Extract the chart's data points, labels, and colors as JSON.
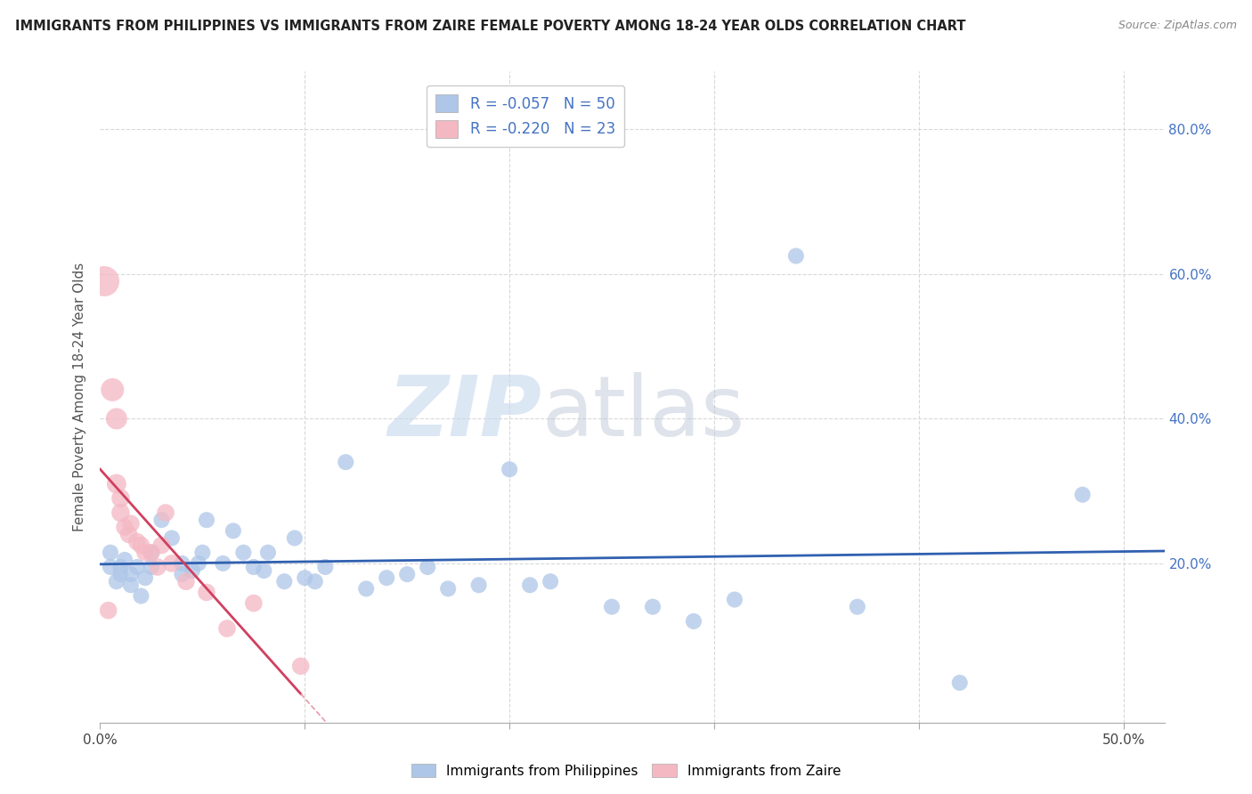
{
  "title": "IMMIGRANTS FROM PHILIPPINES VS IMMIGRANTS FROM ZAIRE FEMALE POVERTY AMONG 18-24 YEAR OLDS CORRELATION CHART",
  "source": "Source: ZipAtlas.com",
  "ylabel": "Female Poverty Among 18-24 Year Olds",
  "xlim": [
    0.0,
    0.52
  ],
  "ylim": [
    -0.02,
    0.88
  ],
  "philippines_color": "#aec6e8",
  "zaire_color": "#f4b8c3",
  "philippines_line_color": "#3060b0",
  "zaire_line_color": "#d04060",
  "zaire_line_dashed_color": "#e899aa",
  "R_philippines": -0.057,
  "N_philippines": 50,
  "R_zaire": -0.22,
  "N_zaire": 23,
  "watermark_zip": "ZIP",
  "watermark_atlas": "atlas",
  "background_color": "#ffffff",
  "grid_color": "#d8d8d8",
  "philippines_x": [
    0.005,
    0.005,
    0.008,
    0.01,
    0.01,
    0.012,
    0.015,
    0.015,
    0.018,
    0.02,
    0.022,
    0.025,
    0.025,
    0.03,
    0.035,
    0.04,
    0.04,
    0.045,
    0.048,
    0.05,
    0.052,
    0.06,
    0.065,
    0.07,
    0.075,
    0.08,
    0.082,
    0.09,
    0.095,
    0.1,
    0.105,
    0.11,
    0.12,
    0.13,
    0.14,
    0.15,
    0.16,
    0.17,
    0.185,
    0.2,
    0.21,
    0.22,
    0.25,
    0.27,
    0.29,
    0.31,
    0.34,
    0.37,
    0.42,
    0.48
  ],
  "philippines_y": [
    0.195,
    0.215,
    0.175,
    0.185,
    0.195,
    0.205,
    0.17,
    0.185,
    0.195,
    0.155,
    0.18,
    0.195,
    0.215,
    0.26,
    0.235,
    0.185,
    0.2,
    0.19,
    0.2,
    0.215,
    0.26,
    0.2,
    0.245,
    0.215,
    0.195,
    0.19,
    0.215,
    0.175,
    0.235,
    0.18,
    0.175,
    0.195,
    0.34,
    0.165,
    0.18,
    0.185,
    0.195,
    0.165,
    0.17,
    0.33,
    0.17,
    0.175,
    0.14,
    0.14,
    0.12,
    0.15,
    0.625,
    0.14,
    0.035,
    0.295
  ],
  "zaire_x": [
    0.002,
    0.004,
    0.006,
    0.008,
    0.008,
    0.01,
    0.01,
    0.012,
    0.014,
    0.015,
    0.018,
    0.02,
    0.022,
    0.025,
    0.028,
    0.03,
    0.032,
    0.035,
    0.042,
    0.052,
    0.062,
    0.075,
    0.098
  ],
  "zaire_y": [
    0.59,
    0.135,
    0.44,
    0.4,
    0.31,
    0.29,
    0.27,
    0.25,
    0.24,
    0.255,
    0.23,
    0.225,
    0.215,
    0.215,
    0.195,
    0.225,
    0.27,
    0.2,
    0.175,
    0.16,
    0.11,
    0.145,
    0.058
  ],
  "zaire_sizes": [
    600,
    200,
    350,
    300,
    250,
    220,
    220,
    200,
    200,
    200,
    200,
    200,
    200,
    200,
    200,
    200,
    200,
    200,
    200,
    200,
    200,
    200,
    200
  ]
}
